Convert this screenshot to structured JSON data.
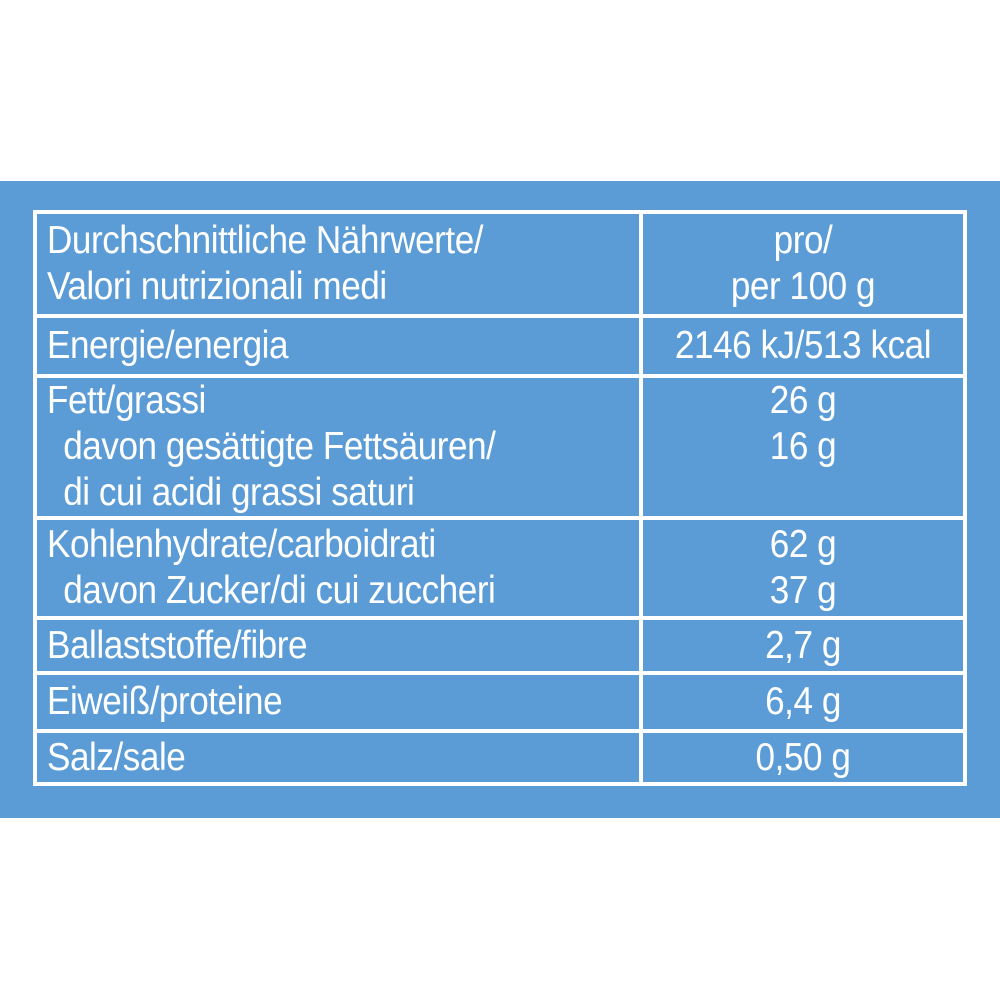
{
  "colors": {
    "panel_bg": "#5B9CD6",
    "table_border": "#FFFFFF",
    "text": "#FFFFFF"
  },
  "table": {
    "header": {
      "label_lines": [
        "Durchschnittliche Nährwerte/",
        "Valori nutrizionali medi"
      ],
      "value_lines": [
        "pro/",
        "per 100 g"
      ]
    },
    "rows": [
      {
        "name": "energy",
        "label_lines": [
          "Energie/energia"
        ],
        "value_lines": [
          "2146 kJ/513 kcal"
        ]
      },
      {
        "name": "fat",
        "label_lines": [
          "Fett/grassi",
          "davon gesättigte Fettsäuren/",
          "di cui acidi grassi saturi"
        ],
        "value_lines": [
          "26 g",
          "16 g"
        ]
      },
      {
        "name": "carbohydrate",
        "label_lines": [
          "Kohlenhydrate/carboidrati",
          "davon Zucker/di cui zuccheri"
        ],
        "value_lines": [
          "62 g",
          "37 g"
        ]
      },
      {
        "name": "fibre",
        "label_lines": [
          "Ballaststoffe/fibre"
        ],
        "value_lines": [
          "2,7 g"
        ]
      },
      {
        "name": "protein",
        "label_lines": [
          "Eiweiß/proteine"
        ],
        "value_lines": [
          "6,4 g"
        ]
      },
      {
        "name": "salt",
        "label_lines": [
          "Salz/sale"
        ],
        "value_lines": [
          "0,50 g"
        ]
      }
    ]
  }
}
